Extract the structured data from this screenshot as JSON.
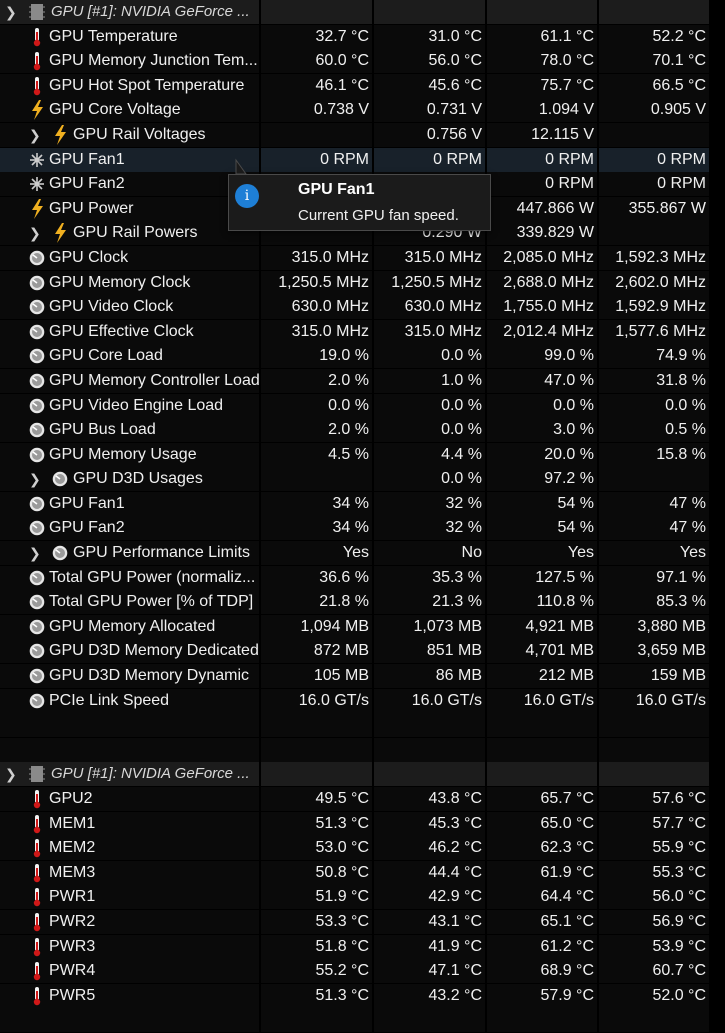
{
  "sections": [
    {
      "title": "GPU [#1]: NVIDIA GeForce ...",
      "rows": [
        {
          "icon": "thermometer-icon",
          "name": "GPU Temperature",
          "v": [
            "32.7 °C",
            "31.0 °C",
            "61.1 °C",
            "52.2 °C"
          ]
        },
        {
          "icon": "thermometer-icon",
          "name": "GPU Memory Junction Tem...",
          "v": [
            "60.0 °C",
            "56.0 °C",
            "78.0 °C",
            "70.1 °C"
          ]
        },
        {
          "icon": "thermometer-icon",
          "name": "GPU Hot Spot Temperature",
          "v": [
            "46.1 °C",
            "45.6 °C",
            "75.7 °C",
            "66.5 °C"
          ]
        },
        {
          "icon": "lightning-icon",
          "name": "GPU Core Voltage",
          "v": [
            "0.738 V",
            "0.731 V",
            "1.094 V",
            "0.905 V"
          ]
        },
        {
          "icon": "lightning-icon",
          "name": "GPU Rail Voltages",
          "sub": true,
          "v": [
            "",
            "0.756 V",
            "12.115 V",
            ""
          ]
        },
        {
          "icon": "fan-icon",
          "name": "GPU Fan1",
          "v": [
            "0 RPM",
            "0 RPM",
            "0 RPM",
            "0 RPM"
          ],
          "highlight": true
        },
        {
          "icon": "fan-icon",
          "name": "GPU Fan2",
          "v": [
            "",
            "",
            "0 RPM",
            "0 RPM"
          ]
        },
        {
          "icon": "lightning-icon",
          "name": "GPU Power",
          "v": [
            "",
            "",
            "447.866 W",
            "355.867 W"
          ]
        },
        {
          "icon": "lightning-icon",
          "name": "GPU Rail Powers",
          "sub": true,
          "v": [
            "",
            "0.290 W",
            "339.829 W",
            ""
          ]
        },
        {
          "icon": "gauge-icon",
          "name": "GPU Clock",
          "v": [
            "315.0 MHz",
            "315.0 MHz",
            "2,085.0 MHz",
            "1,592.3 MHz"
          ]
        },
        {
          "icon": "gauge-icon",
          "name": "GPU Memory Clock",
          "v": [
            "1,250.5 MHz",
            "1,250.5 MHz",
            "2,688.0 MHz",
            "2,602.0 MHz"
          ]
        },
        {
          "icon": "gauge-icon",
          "name": "GPU Video Clock",
          "v": [
            "630.0 MHz",
            "630.0 MHz",
            "1,755.0 MHz",
            "1,592.9 MHz"
          ]
        },
        {
          "icon": "gauge-icon",
          "name": "GPU Effective Clock",
          "v": [
            "315.0 MHz",
            "315.0 MHz",
            "2,012.4 MHz",
            "1,577.6 MHz"
          ]
        },
        {
          "icon": "gauge-icon",
          "name": "GPU Core Load",
          "v": [
            "19.0 %",
            "0.0 %",
            "99.0 %",
            "74.9 %"
          ]
        },
        {
          "icon": "gauge-icon",
          "name": "GPU Memory Controller Load",
          "v": [
            "2.0 %",
            "1.0 %",
            "47.0 %",
            "31.8 %"
          ]
        },
        {
          "icon": "gauge-icon",
          "name": "GPU Video Engine Load",
          "v": [
            "0.0 %",
            "0.0 %",
            "0.0 %",
            "0.0 %"
          ]
        },
        {
          "icon": "gauge-icon",
          "name": "GPU Bus Load",
          "v": [
            "2.0 %",
            "0.0 %",
            "3.0 %",
            "0.5 %"
          ]
        },
        {
          "icon": "gauge-icon",
          "name": "GPU Memory Usage",
          "v": [
            "4.5 %",
            "4.4 %",
            "20.0 %",
            "15.8 %"
          ]
        },
        {
          "icon": "gauge-icon",
          "name": "GPU D3D Usages",
          "sub": true,
          "v": [
            "",
            "0.0 %",
            "97.2 %",
            ""
          ]
        },
        {
          "icon": "gauge-icon",
          "name": "GPU Fan1",
          "v": [
            "34 %",
            "32 %",
            "54 %",
            "47 %"
          ]
        },
        {
          "icon": "gauge-icon",
          "name": "GPU Fan2",
          "v": [
            "34 %",
            "32 %",
            "54 %",
            "47 %"
          ]
        },
        {
          "icon": "gauge-icon",
          "name": "GPU Performance Limits",
          "sub": true,
          "v": [
            "Yes",
            "No",
            "Yes",
            "Yes"
          ]
        },
        {
          "icon": "gauge-icon",
          "name": "Total GPU Power (normaliz...",
          "v": [
            "36.6 %",
            "35.3 %",
            "127.5 %",
            "97.1 %"
          ]
        },
        {
          "icon": "gauge-icon",
          "name": "Total GPU Power [% of TDP]",
          "v": [
            "21.8 %",
            "21.3 %",
            "110.8 %",
            "85.3 %"
          ]
        },
        {
          "icon": "gauge-icon",
          "name": "GPU Memory Allocated",
          "v": [
            "1,094 MB",
            "1,073 MB",
            "4,921 MB",
            "3,880 MB"
          ]
        },
        {
          "icon": "gauge-icon",
          "name": "GPU D3D Memory Dedicated",
          "v": [
            "872 MB",
            "851 MB",
            "4,701 MB",
            "3,659 MB"
          ]
        },
        {
          "icon": "gauge-icon",
          "name": "GPU D3D Memory Dynamic",
          "v": [
            "105 MB",
            "86 MB",
            "212 MB",
            "159 MB"
          ]
        },
        {
          "icon": "gauge-icon",
          "name": "PCIe Link Speed",
          "v": [
            "16.0 GT/s",
            "16.0 GT/s",
            "16.0 GT/s",
            "16.0 GT/s"
          ]
        }
      ]
    },
    {
      "title": "GPU [#1]: NVIDIA GeForce ...",
      "rows": [
        {
          "icon": "thermometer-icon",
          "name": "GPU2",
          "v": [
            "49.5 °C",
            "43.8 °C",
            "65.7 °C",
            "57.6 °C"
          ]
        },
        {
          "icon": "thermometer-icon",
          "name": "MEM1",
          "v": [
            "51.3 °C",
            "45.3 °C",
            "65.0 °C",
            "57.7 °C"
          ]
        },
        {
          "icon": "thermometer-icon",
          "name": "MEM2",
          "v": [
            "53.0 °C",
            "46.2 °C",
            "62.3 °C",
            "55.9 °C"
          ]
        },
        {
          "icon": "thermometer-icon",
          "name": "MEM3",
          "v": [
            "50.8 °C",
            "44.4 °C",
            "61.9 °C",
            "55.3 °C"
          ]
        },
        {
          "icon": "thermometer-icon",
          "name": "PWR1",
          "v": [
            "51.9 °C",
            "42.9 °C",
            "64.4 °C",
            "56.0 °C"
          ]
        },
        {
          "icon": "thermometer-icon",
          "name": "PWR2",
          "v": [
            "53.3 °C",
            "43.1 °C",
            "65.1 °C",
            "56.9 °C"
          ]
        },
        {
          "icon": "thermometer-icon",
          "name": "PWR3",
          "v": [
            "51.8 °C",
            "41.9 °C",
            "61.2 °C",
            "53.9 °C"
          ]
        },
        {
          "icon": "thermometer-icon",
          "name": "PWR4",
          "v": [
            "55.2 °C",
            "47.1 °C",
            "68.9 °C",
            "60.7 °C"
          ]
        },
        {
          "icon": "thermometer-icon",
          "name": "PWR5",
          "v": [
            "51.3 °C",
            "43.2 °C",
            "57.9 °C",
            "52.0 °C"
          ]
        }
      ]
    }
  ],
  "tooltip": {
    "title": "GPU Fan1",
    "body": "Current GPU fan speed.",
    "icon": "info-icon"
  },
  "colors": {
    "thermometer": "#d01818",
    "lightning": "#f0b020",
    "gauge": "#d8d8d8",
    "highlight": "#18212a"
  }
}
